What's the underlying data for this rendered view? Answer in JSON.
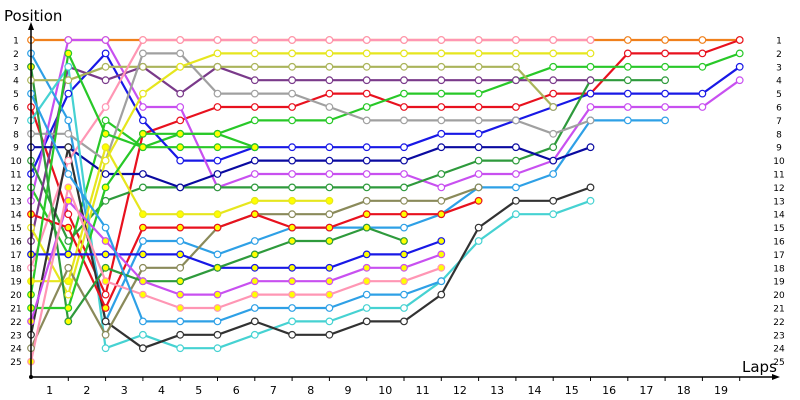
{
  "chart_data": {
    "type": "line",
    "ylabel": "Position",
    "xlabel": "Laps",
    "x_ticks": [
      "1",
      "2",
      "3",
      "4",
      "5",
      "6",
      "7",
      "8",
      "9",
      "10",
      "11",
      "12",
      "13",
      "14",
      "15",
      "16",
      "17",
      "18",
      "19"
    ],
    "y_ticks": [
      "1",
      "2",
      "3",
      "4",
      "5",
      "6",
      "7",
      "8",
      "9",
      "10",
      "11",
      "12",
      "13",
      "14",
      "15",
      "16",
      "17",
      "18",
      "19",
      "20",
      "21",
      "22",
      "23",
      "24",
      "25"
    ],
    "xlim": [
      0,
      20
    ],
    "ylim": [
      25,
      1
    ],
    "grid": false,
    "legend": "none",
    "series": [
      {
        "color": "#f0801c",
        "fill": "#ffffff",
        "values": [
          1,
          1,
          1,
          1,
          1,
          1,
          1,
          1,
          1,
          1,
          1,
          1,
          1,
          1,
          1,
          1,
          1,
          1,
          1,
          1
        ]
      },
      {
        "color": "#e8111e",
        "fill": "#ffffff",
        "values": [
          6,
          14,
          20,
          8,
          7,
          6,
          6,
          6,
          5,
          5,
          6,
          6,
          6,
          6,
          5,
          5,
          2,
          2,
          2,
          1
        ]
      },
      {
        "color": "#28c828",
        "fill": "#ffffff",
        "values": [
          12,
          17,
          7,
          9,
          8,
          8,
          7,
          7,
          7,
          6,
          5,
          5,
          5,
          4,
          3,
          3,
          3,
          3,
          3,
          2
        ]
      },
      {
        "color": "#1818e6",
        "fill": "#ffffff",
        "values": [
          11,
          5,
          2,
          7,
          10,
          10,
          9,
          9,
          9,
          9,
          9,
          8,
          8,
          7,
          6,
          5,
          5,
          5,
          5,
          3
        ]
      },
      {
        "color": "#c850f0",
        "fill": "#ffffff",
        "values": [
          13,
          1,
          1,
          6,
          6,
          12,
          11,
          11,
          11,
          11,
          11,
          12,
          11,
          11,
          10,
          6,
          6,
          6,
          6,
          4
        ]
      },
      {
        "color": "#2ea0e6",
        "fill": "#ffffff",
        "values": [
          2,
          7,
          22,
          16,
          16,
          17,
          16,
          15,
          15,
          15,
          15,
          14,
          12,
          12,
          11,
          7,
          7,
          7
        ]
      },
      {
        "color": "#2e9a3c",
        "fill": "#ffffff",
        "values": [
          10,
          16,
          13,
          12,
          12,
          12,
          12,
          12,
          12,
          12,
          12,
          11,
          10,
          10,
          9,
          4,
          4,
          4
        ]
      },
      {
        "color": "#7a3a8a",
        "fill": "#ffffff",
        "values": [
          16,
          3,
          4,
          3,
          5,
          3,
          4,
          4,
          4,
          4,
          4,
          4,
          4,
          4,
          4,
          4
        ]
      },
      {
        "color": "#aab45a",
        "fill": "#ffffff",
        "values": [
          4,
          4,
          3,
          3,
          3,
          3,
          3,
          3,
          3,
          3,
          3,
          3,
          3,
          3,
          6
        ]
      },
      {
        "color": "#0a0aa0",
        "fill": "#ffffff",
        "values": [
          9,
          9,
          11,
          11,
          12,
          11,
          10,
          10,
          10,
          10,
          10,
          9,
          9,
          9,
          10,
          9
        ]
      },
      {
        "color": "#a0a0a0",
        "fill": "#ffffff",
        "values": [
          8,
          8,
          10,
          2,
          2,
          5,
          5,
          5,
          6,
          7,
          7,
          7,
          7,
          7,
          8,
          7
        ]
      },
      {
        "color": "#ff96b4",
        "fill": "#ffffff",
        "values": [
          18,
          10,
          6,
          1,
          1,
          1,
          1,
          1,
          1,
          1,
          1,
          1,
          1,
          1,
          1,
          1
        ]
      },
      {
        "color": "#e6e61e",
        "fill": "#ffffff",
        "values": [
          15,
          20,
          10,
          5,
          3,
          2,
          2,
          2,
          2,
          2,
          2,
          2,
          2,
          2,
          2,
          2
        ]
      },
      {
        "color": "#46d2d2",
        "fill": "#ffffff",
        "values": [
          7,
          3,
          24,
          23,
          24,
          24,
          23,
          22,
          22,
          21,
          21,
          19,
          16,
          14,
          14,
          13
        ]
      },
      {
        "color": "#323232",
        "fill": "#ffffff",
        "values": [
          23,
          9,
          22,
          24,
          23,
          23,
          22,
          23,
          23,
          22,
          22,
          20,
          15,
          13,
          13,
          12
        ]
      },
      {
        "color": "#8a8a5a",
        "fill": "#ffffff",
        "values": [
          24,
          18,
          23,
          18,
          18,
          15,
          14,
          14,
          14,
          13,
          13,
          13,
          12
        ]
      },
      {
        "color": "#e8111e",
        "fill": "#ffff00",
        "values": [
          14,
          15,
          21,
          15,
          15,
          15,
          14,
          15,
          15,
          14,
          14,
          14,
          13
        ]
      },
      {
        "color": "#e6e61e",
        "fill": "#ffff00",
        "values": [
          19,
          19,
          9,
          14,
          14,
          14,
          13,
          13,
          13
        ]
      },
      {
        "color": "#28c828",
        "fill": "#ffff00",
        "values": [
          21,
          21,
          12,
          8,
          8,
          8,
          9
        ]
      },
      {
        "color": "#1818e6",
        "fill": "#ffff00",
        "values": [
          17,
          17,
          17,
          17,
          17,
          18,
          18,
          18,
          18,
          17,
          17,
          16
        ]
      },
      {
        "color": "#28c828",
        "fill": "#ffff00",
        "values": [
          20,
          2,
          8,
          9,
          9,
          9,
          9
        ]
      },
      {
        "color": "#2e9a3c",
        "fill": "#ffff00",
        "values": [
          3,
          22,
          18,
          19,
          19,
          18,
          17,
          16,
          16,
          15,
          16
        ]
      },
      {
        "color": "#c850f0",
        "fill": "#ffff00",
        "values": [
          22,
          13,
          16,
          19,
          20,
          20,
          19,
          19,
          19,
          18,
          18,
          17
        ]
      },
      {
        "color": "#ff96b4",
        "fill": "#ffff00",
        "values": [
          25,
          12,
          19,
          20,
          21,
          21,
          20,
          20,
          20,
          19,
          19,
          18
        ]
      },
      {
        "color": "#2ea0e6",
        "fill": "#ffffff",
        "values": [
          5,
          11,
          15,
          22,
          22,
          22,
          21,
          21,
          21,
          20,
          20,
          19
        ]
      }
    ]
  }
}
